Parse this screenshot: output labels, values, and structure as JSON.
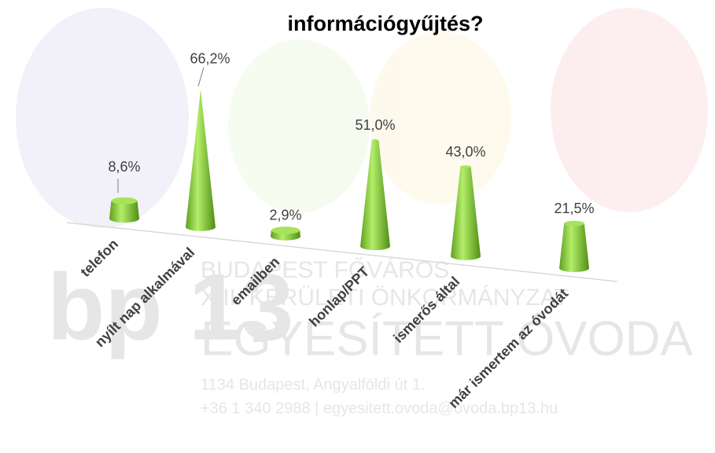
{
  "chart_data": {
    "type": "cone",
    "title": "információgyűjtés?",
    "categories": [
      "telefon",
      "nyílt nap alkalmával",
      "emailben",
      "honlap/PPT",
      "ismerős által",
      "már ismertem az óvodát"
    ],
    "values": [
      8.6,
      66.2,
      2.9,
      51.0,
      43.0,
      21.5
    ],
    "value_labels": [
      "8,6%",
      "66,2%",
      "2,9%",
      "51,0%",
      "43,0%",
      "21,5%"
    ],
    "color": "#8fd43c"
  },
  "watermark": {
    "logo": "bp 13",
    "lines": [
      "BUDAPEST FŐVÁROS",
      "XIII. KERÜLETI ÖNKORMÁNYZAT",
      "EGYESÍTETT ÓVODA",
      "1134 Budapest, Angyalföldi út 1.",
      "+36 1 340 2988 | egyesitett.ovoda@ovoda.bp13.hu"
    ]
  }
}
